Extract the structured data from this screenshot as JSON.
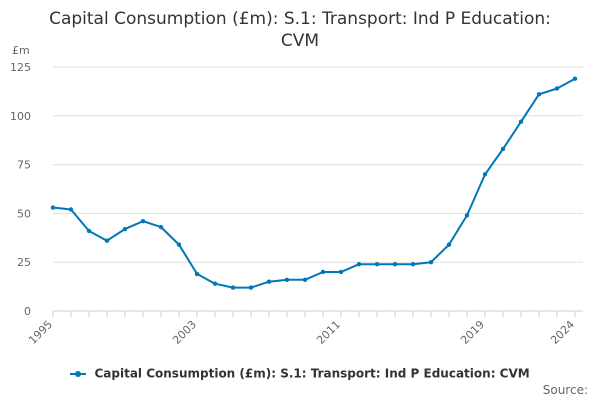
{
  "title_line1": "Capital Consumption (£m): S.1: Transport: Ind P Education:",
  "title_line2": "CVM",
  "unit_label": "£m",
  "source_label": "Source:",
  "colors": {
    "series": "#0077b6",
    "grid": "#dddddd",
    "axis": "#cccccc",
    "text": "#666666"
  },
  "chart_data": {
    "type": "line",
    "title": "Capital Consumption (£m): S.1: Transport: Ind P Education: CVM",
    "ylabel": "£m",
    "xlabel": "",
    "ylim": [
      0,
      125
    ],
    "yticks": [
      0,
      25,
      50,
      75,
      100,
      125
    ],
    "xlim": [
      1995,
      2024
    ],
    "xticks": [
      1995,
      2003,
      2011,
      2019,
      2024
    ],
    "grid": true,
    "legend_position": "bottom",
    "series": [
      {
        "name": "Capital Consumption (£m): S.1: Transport: Ind P Education: CVM",
        "x": [
          1995,
          1996,
          1997,
          1998,
          1999,
          2000,
          2001,
          2002,
          2003,
          2004,
          2005,
          2006,
          2007,
          2008,
          2009,
          2010,
          2011,
          2012,
          2013,
          2014,
          2015,
          2016,
          2017,
          2018,
          2019,
          2020,
          2021,
          2022,
          2023,
          2024
        ],
        "values": [
          53,
          52,
          41,
          36,
          42,
          46,
          43,
          34,
          19,
          14,
          12,
          12,
          15,
          16,
          16,
          20,
          20,
          24,
          24,
          24,
          24,
          25,
          34,
          49,
          70,
          83,
          97,
          111,
          114,
          119
        ]
      }
    ]
  }
}
